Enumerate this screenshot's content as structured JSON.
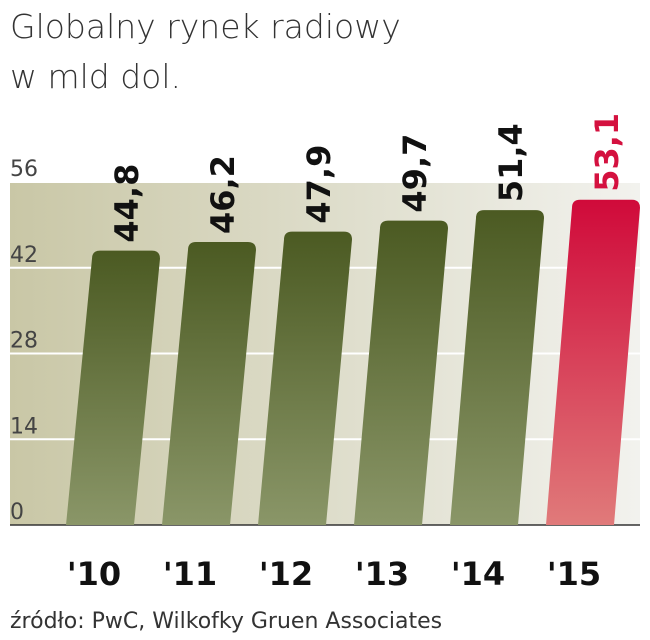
{
  "chart_data": {
    "type": "bar",
    "title": "Globalny rynek radiowy",
    "subtitle": "w mld dol.",
    "categories": [
      "'10",
      "'11",
      "'12",
      "'13",
      "'14",
      "'15"
    ],
    "values": [
      44.8,
      46.2,
      47.9,
      49.7,
      51.4,
      53.1
    ],
    "value_labels": [
      "44,8",
      "46,2",
      "47,9",
      "49,7",
      "51,4",
      "53,1"
    ],
    "colors": [
      "#56682b",
      "#56682b",
      "#56682b",
      "#56682b",
      "#56682b",
      "#d4113f"
    ],
    "ylim": [
      0,
      56
    ],
    "yticks": [
      0,
      14,
      28,
      42,
      56
    ],
    "grid": true,
    "source": "źródło: PwC, Wilkofky Gruen Associates"
  }
}
